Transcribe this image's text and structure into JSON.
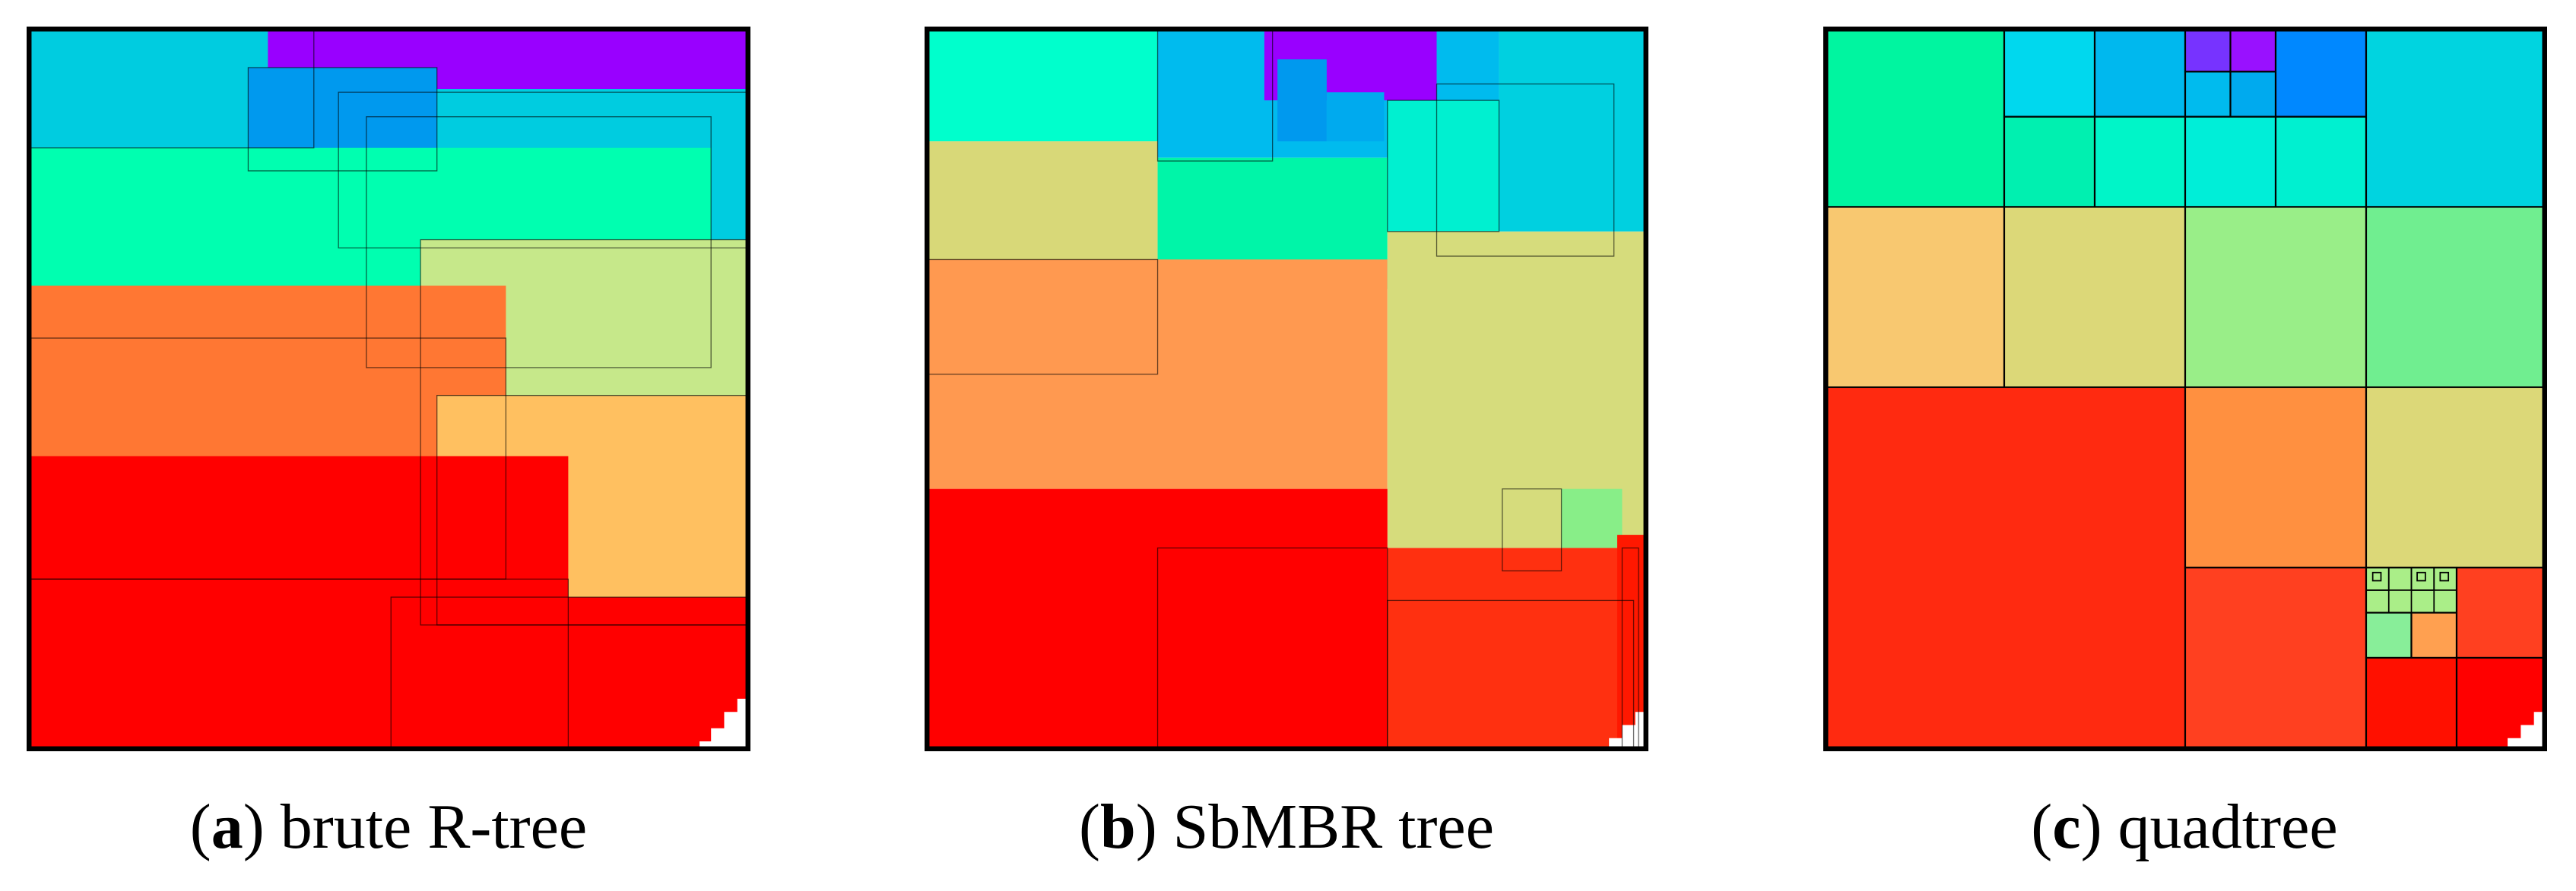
{
  "panels": [
    {
      "caption_parts": [
        "(",
        "a",
        ") brute R-tree"
      ]
    },
    {
      "caption_parts": [
        "(",
        "b",
        ") SbMBR tree"
      ]
    },
    {
      "caption_parts": [
        "(",
        "c",
        ") quadtree"
      ]
    }
  ]
}
